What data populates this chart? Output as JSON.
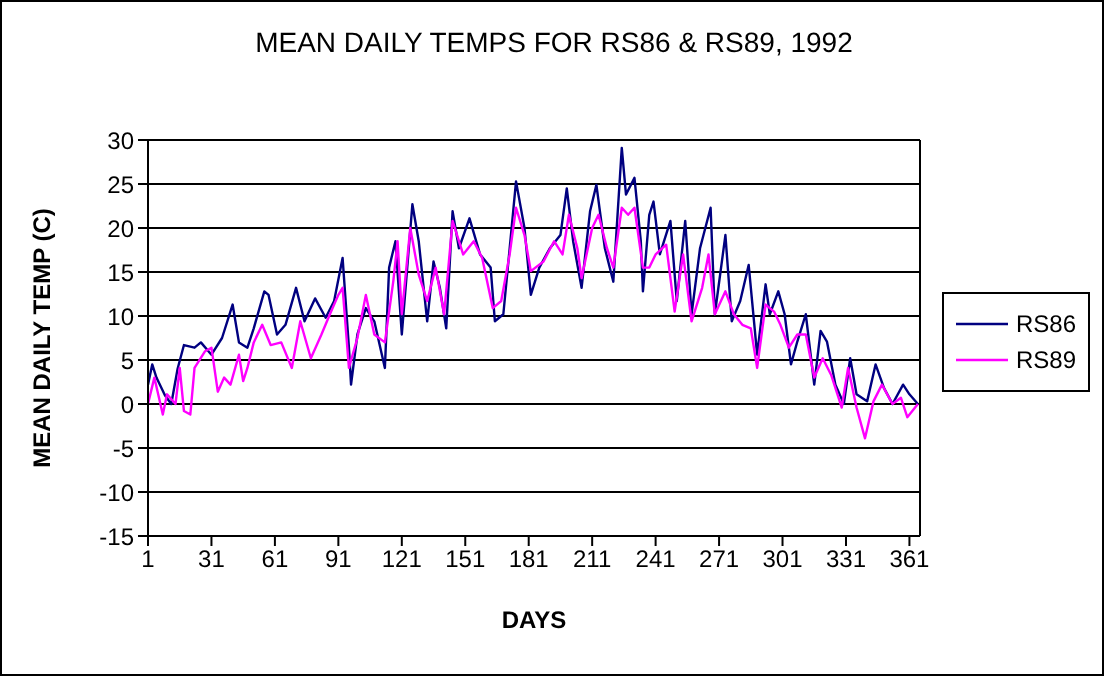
{
  "chart_data": {
    "type": "line",
    "title": "MEAN DAILY TEMPS FOR RS86 & RS89, 1992",
    "xlabel": "DAYS",
    "ylabel": "MEAN DAILY TEMP (C)",
    "xlim": [
      1,
      366
    ],
    "xticks": [
      1,
      31,
      61,
      91,
      121,
      151,
      181,
      211,
      241,
      271,
      301,
      331,
      361
    ],
    "ylim": [
      -15,
      30
    ],
    "yticks": [
      -15,
      -10,
      -5,
      0,
      5,
      10,
      15,
      20,
      25,
      30
    ],
    "grid": "y",
    "legend": "right",
    "marker": "none",
    "line_style": "solid",
    "series": [
      {
        "name": "RS86",
        "color": "#000080",
        "x": [
          1,
          3,
          5,
          9,
          12,
          15,
          18,
          23,
          26,
          31,
          36,
          41,
          44,
          48,
          51,
          56,
          58,
          62,
          66,
          71,
          75,
          80,
          85,
          89,
          93,
          96,
          97,
          100,
          104,
          108,
          113,
          115,
          118,
          121,
          126,
          129,
          133,
          136,
          139,
          142,
          145,
          148,
          153,
          158,
          163,
          165,
          169,
          172,
          175,
          179,
          182,
          186,
          191,
          196,
          199,
          202,
          206,
          210,
          213,
          217,
          221,
          225,
          227,
          231,
          234,
          235,
          238,
          240,
          243,
          248,
          251,
          255,
          258,
          262,
          267,
          269,
          274,
          277,
          281,
          285,
          289,
          293,
          295,
          299,
          302,
          305,
          308,
          312,
          316,
          319,
          322,
          326,
          330,
          333,
          336,
          341,
          345,
          349,
          353,
          358,
          361,
          365
        ],
        "values": [
          2.2,
          4.5,
          3,
          1,
          0,
          4,
          6.7,
          6.4,
          7,
          5.6,
          7.5,
          11.3,
          7,
          6.4,
          8.6,
          12.8,
          12.4,
          7.9,
          9,
          13.2,
          9.4,
          12,
          9.8,
          11.7,
          16.6,
          6.4,
          2.2,
          7.9,
          10.9,
          9.4,
          4.1,
          15.5,
          18.5,
          7.9,
          22.7,
          18.5,
          9.4,
          16.2,
          13.2,
          8.6,
          21.9,
          17.7,
          21.1,
          17,
          15.5,
          9.4,
          10.2,
          17.7,
          25.3,
          20,
          12.4,
          15.5,
          17.7,
          19.2,
          24.5,
          18.5,
          13.2,
          21.9,
          24.9,
          17.7,
          13.9,
          29.1,
          23.8,
          25.7,
          18.5,
          12.8,
          21.5,
          23,
          17,
          20.8,
          11.7,
          20.8,
          10.2,
          17.7,
          22.3,
          10.2,
          19.2,
          9.4,
          11.7,
          15.8,
          5.6,
          13.6,
          10.2,
          12.8,
          10.2,
          4.5,
          7.1,
          10.2,
          2.2,
          8.3,
          7.1,
          2.2,
          0,
          5.2,
          1.1,
          0.3,
          4.5,
          1.8,
          0,
          2.2,
          1.1,
          0
        ]
      },
      {
        "name": "RS89",
        "color": "#ff00ff",
        "x": [
          1,
          4,
          8,
          10,
          14,
          16,
          18,
          21,
          23,
          28,
          31,
          34,
          37,
          40,
          44,
          46,
          48,
          51,
          55,
          59,
          64,
          69,
          73,
          78,
          83,
          87,
          91,
          93,
          96,
          100,
          104,
          108,
          113,
          117,
          119,
          121,
          125,
          129,
          133,
          137,
          141,
          145,
          150,
          155,
          159,
          164,
          168,
          172,
          175,
          179,
          182,
          188,
          193,
          197,
          200,
          204,
          206,
          211,
          214,
          218,
          221,
          225,
          228,
          231,
          235,
          238,
          241,
          246,
          250,
          254,
          258,
          263,
          266,
          269,
          274,
          278,
          282,
          286,
          289,
          293,
          297,
          300,
          304,
          308,
          312,
          316,
          320,
          324,
          329,
          332,
          336,
          340,
          344,
          348,
          353,
          357,
          360,
          365
        ],
        "values": [
          0,
          3,
          -1.2,
          1.1,
          0,
          4.1,
          -0.8,
          -1.2,
          4.1,
          6,
          6.4,
          1.4,
          3,
          2.2,
          5.6,
          2.6,
          4.1,
          7,
          9,
          6.7,
          7,
          4.1,
          9.4,
          5.2,
          7.9,
          10.2,
          12.4,
          13.2,
          4.1,
          7.5,
          12.4,
          7.9,
          7,
          14,
          18.5,
          10.2,
          20,
          14.7,
          11.7,
          15.5,
          10.2,
          20.8,
          17,
          18.5,
          16.6,
          10.9,
          11.7,
          17,
          22.3,
          19.2,
          15.1,
          16.2,
          18.5,
          17,
          21.5,
          17.7,
          14.3,
          20,
          21.5,
          17.7,
          15.5,
          22.3,
          21.5,
          22.3,
          15.5,
          15.5,
          17,
          18.1,
          10.5,
          17,
          9.4,
          13.2,
          17,
          10.2,
          12.8,
          10.2,
          9,
          8.6,
          4.1,
          11.3,
          10.5,
          9,
          6.4,
          7.9,
          7.9,
          3,
          5.2,
          3.3,
          -0.4,
          4.1,
          -0.4,
          -3.9,
          0.3,
          2.2,
          0,
          0.7,
          -1.5,
          0
        ]
      }
    ]
  }
}
